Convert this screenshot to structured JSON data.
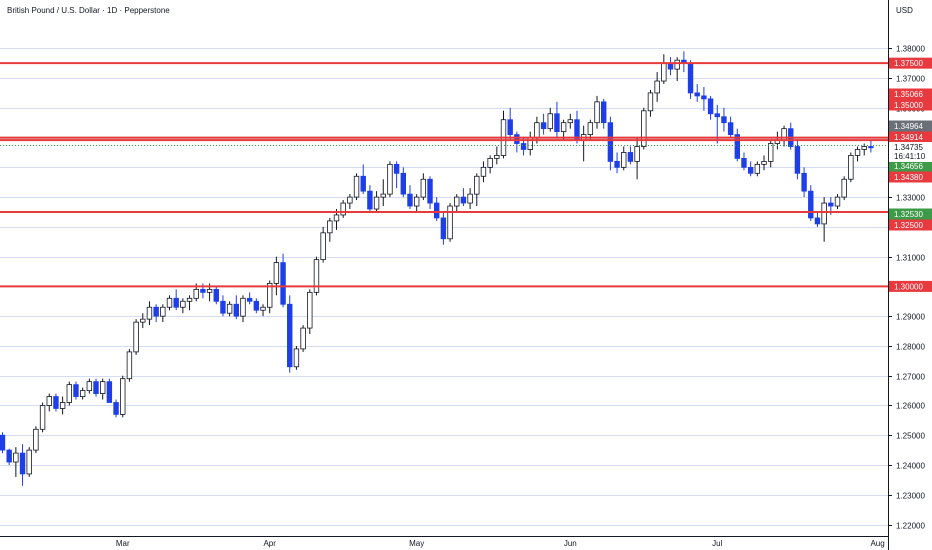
{
  "chart_data": {
    "type": "candlestick",
    "title": "British Pound / U.S. Dollar · 1D · Pepperstone",
    "currency": "USD",
    "colors": {
      "up_body": "#ffffff",
      "up_border": "#131722",
      "down_body": "#1e3ee8",
      "down_border": "#1e3ee8",
      "wick": "#131722",
      "grid": "#d6dcf0",
      "level_line": "#e83a3a",
      "tag_red": "#e8393f",
      "tag_green": "#3d9a48",
      "tag_gray": "#6b6f78",
      "axis_line": "#131722"
    },
    "y_axis": {
      "min": 1.2185,
      "max": 1.3895,
      "ticks": [
        "1.38000",
        "1.37000",
        "1.36000",
        "1.35000",
        "1.34000",
        "1.33000",
        "1.32000",
        "1.31000",
        "1.30000",
        "1.29000",
        "1.28000",
        "1.27000",
        "1.26000",
        "1.25000",
        "1.24000",
        "1.23000",
        "1.22000"
      ]
    },
    "x_axis": {
      "labels": [
        {
          "label": "Mar",
          "index": 18
        },
        {
          "label": "Apr",
          "index": 40
        },
        {
          "label": "May",
          "index": 62
        },
        {
          "label": "Jun",
          "index": 85
        },
        {
          "label": "Jul",
          "index": 107
        },
        {
          "label": "Aug",
          "index": 131
        }
      ]
    },
    "horizontal_levels": [
      1.375,
      1.35,
      1.325,
      1.3,
      1.34914
    ],
    "price_tags": [
      {
        "text": "1.37500",
        "value": 1.375,
        "style": "red"
      },
      {
        "text": "1.35066",
        "value": 1.35066,
        "style": "red"
      },
      {
        "text": "1.35000",
        "value": 1.35,
        "style": "red"
      },
      {
        "text": "1.34964",
        "value": 1.34964,
        "style": "gray"
      },
      {
        "text": "1.34914",
        "value": 1.34914,
        "style": "red"
      },
      {
        "text": "1.34656",
        "value": 1.34656,
        "style": "green"
      },
      {
        "text": "1.34380",
        "value": 1.3438,
        "style": "red"
      },
      {
        "text": "1.32530",
        "value": 1.3253,
        "style": "green"
      },
      {
        "text": "1.32500",
        "value": 1.325,
        "style": "red"
      },
      {
        "text": "1.30000",
        "value": 1.3,
        "style": "red"
      }
    ],
    "current_price": {
      "price": "1.34735",
      "countdown": "16:41:10",
      "value": 1.34735
    },
    "candles": [
      [
        1.25,
        1.251,
        1.244,
        1.245
      ],
      [
        1.245,
        1.2455,
        1.24,
        1.241
      ],
      [
        1.241,
        1.246,
        1.236,
        1.244
      ],
      [
        1.244,
        1.247,
        1.233,
        1.237
      ],
      [
        1.237,
        1.246,
        1.236,
        1.245
      ],
      [
        1.245,
        1.253,
        1.244,
        1.252
      ],
      [
        1.252,
        1.261,
        1.251,
        1.26
      ],
      [
        1.26,
        1.264,
        1.258,
        1.263
      ],
      [
        1.263,
        1.264,
        1.258,
        1.259
      ],
      [
        1.259,
        1.263,
        1.257,
        1.261
      ],
      [
        1.261,
        1.268,
        1.26,
        1.267
      ],
      [
        1.267,
        1.268,
        1.262,
        1.263
      ],
      [
        1.263,
        1.266,
        1.262,
        1.265
      ],
      [
        1.265,
        1.269,
        1.264,
        1.268
      ],
      [
        1.268,
        1.269,
        1.263,
        1.264
      ],
      [
        1.264,
        1.269,
        1.262,
        1.268
      ],
      [
        1.268,
        1.269,
        1.261,
        1.261
      ],
      [
        1.261,
        1.262,
        1.256,
        1.257
      ],
      [
        1.257,
        1.27,
        1.256,
        1.269
      ],
      [
        1.269,
        1.279,
        1.268,
        1.278
      ],
      [
        1.278,
        1.289,
        1.277,
        1.288
      ],
      [
        1.288,
        1.291,
        1.286,
        1.289
      ],
      [
        1.289,
        1.295,
        1.287,
        1.293
      ],
      [
        1.293,
        1.294,
        1.288,
        1.29
      ],
      [
        1.29,
        1.294,
        1.288,
        1.293
      ],
      [
        1.293,
        1.297,
        1.292,
        1.296
      ],
      [
        1.296,
        1.299,
        1.292,
        1.293
      ],
      [
        1.293,
        1.296,
        1.291,
        1.295
      ],
      [
        1.295,
        1.297,
        1.292,
        1.296
      ],
      [
        1.296,
        1.301,
        1.295,
        1.299
      ],
      [
        1.299,
        1.301,
        1.296,
        1.298
      ],
      [
        1.298,
        1.301,
        1.295,
        1.299
      ],
      [
        1.299,
        1.3,
        1.294,
        1.295
      ],
      [
        1.295,
        1.297,
        1.29,
        1.291
      ],
      [
        1.291,
        1.295,
        1.29,
        1.294
      ],
      [
        1.294,
        1.297,
        1.289,
        1.29
      ],
      [
        1.29,
        1.297,
        1.288,
        1.296
      ],
      [
        1.296,
        1.298,
        1.294,
        1.295
      ],
      [
        1.295,
        1.296,
        1.291,
        1.292
      ],
      [
        1.292,
        1.294,
        1.29,
        1.293
      ],
      [
        1.293,
        1.302,
        1.291,
        1.301
      ],
      [
        1.301,
        1.31,
        1.297,
        1.308
      ],
      [
        1.308,
        1.311,
        1.293,
        1.294
      ],
      [
        1.294,
        1.297,
        1.271,
        1.273
      ],
      [
        1.273,
        1.28,
        1.272,
        1.279
      ],
      [
        1.279,
        1.287,
        1.278,
        1.286
      ],
      [
        1.286,
        1.299,
        1.284,
        1.298
      ],
      [
        1.298,
        1.31,
        1.297,
        1.309
      ],
      [
        1.309,
        1.32,
        1.308,
        1.318
      ],
      [
        1.318,
        1.323,
        1.315,
        1.322
      ],
      [
        1.322,
        1.326,
        1.319,
        1.324
      ],
      [
        1.324,
        1.329,
        1.323,
        1.328
      ],
      [
        1.328,
        1.331,
        1.326,
        1.33
      ],
      [
        1.33,
        1.338,
        1.329,
        1.337
      ],
      [
        1.337,
        1.341,
        1.331,
        1.332
      ],
      [
        1.332,
        1.334,
        1.325,
        1.326
      ],
      [
        1.326,
        1.332,
        1.325,
        1.33
      ],
      [
        1.33,
        1.336,
        1.327,
        1.331
      ],
      [
        1.331,
        1.342,
        1.33,
        1.341
      ],
      [
        1.341,
        1.342,
        1.333,
        1.338
      ],
      [
        1.338,
        1.34,
        1.33,
        1.331
      ],
      [
        1.331,
        1.334,
        1.326,
        1.327
      ],
      [
        1.327,
        1.331,
        1.325,
        1.33
      ],
      [
        1.33,
        1.338,
        1.329,
        1.336
      ],
      [
        1.336,
        1.337,
        1.326,
        1.328
      ],
      [
        1.328,
        1.33,
        1.322,
        1.323
      ],
      [
        1.323,
        1.325,
        1.314,
        1.316
      ],
      [
        1.316,
        1.328,
        1.315,
        1.327
      ],
      [
        1.327,
        1.331,
        1.325,
        1.33
      ],
      [
        1.33,
        1.333,
        1.327,
        1.328
      ],
      [
        1.328,
        1.333,
        1.326,
        1.331
      ],
      [
        1.331,
        1.338,
        1.327,
        1.337
      ],
      [
        1.337,
        1.342,
        1.335,
        1.34
      ],
      [
        1.34,
        1.344,
        1.338,
        1.343
      ],
      [
        1.343,
        1.347,
        1.341,
        1.344
      ],
      [
        1.344,
        1.359,
        1.343,
        1.356
      ],
      [
        1.356,
        1.36,
        1.349,
        1.351
      ],
      [
        1.351,
        1.352,
        1.345,
        1.348
      ],
      [
        1.348,
        1.35,
        1.344,
        1.346
      ],
      [
        1.346,
        1.352,
        1.344,
        1.35
      ],
      [
        1.35,
        1.357,
        1.348,
        1.355
      ],
      [
        1.355,
        1.358,
        1.351,
        1.353
      ],
      [
        1.353,
        1.36,
        1.352,
        1.358
      ],
      [
        1.358,
        1.362,
        1.35,
        1.352
      ],
      [
        1.352,
        1.356,
        1.349,
        1.355
      ],
      [
        1.355,
        1.358,
        1.353,
        1.356
      ],
      [
        1.356,
        1.359,
        1.348,
        1.349
      ],
      [
        1.349,
        1.354,
        1.342,
        1.351
      ],
      [
        1.351,
        1.356,
        1.349,
        1.355
      ],
      [
        1.355,
        1.364,
        1.353,
        1.362
      ],
      [
        1.362,
        1.363,
        1.353,
        1.355
      ],
      [
        1.355,
        1.357,
        1.339,
        1.342
      ],
      [
        1.342,
        1.345,
        1.338,
        1.34
      ],
      [
        1.34,
        1.347,
        1.339,
        1.345
      ],
      [
        1.345,
        1.347,
        1.341,
        1.342
      ],
      [
        1.342,
        1.35,
        1.336,
        1.347
      ],
      [
        1.347,
        1.36,
        1.346,
        1.359
      ],
      [
        1.359,
        1.366,
        1.357,
        1.365
      ],
      [
        1.365,
        1.372,
        1.362,
        1.369
      ],
      [
        1.369,
        1.378,
        1.368,
        1.375
      ],
      [
        1.375,
        1.377,
        1.371,
        1.373
      ],
      [
        1.373,
        1.377,
        1.369,
        1.376
      ],
      [
        1.376,
        1.379,
        1.372,
        1.375
      ],
      [
        1.375,
        1.376,
        1.363,
        1.365
      ],
      [
        1.365,
        1.368,
        1.362,
        1.364
      ],
      [
        1.364,
        1.367,
        1.359,
        1.363
      ],
      [
        1.363,
        1.364,
        1.356,
        1.358
      ],
      [
        1.358,
        1.361,
        1.348,
        1.357
      ],
      [
        1.357,
        1.36,
        1.352,
        1.355
      ],
      [
        1.355,
        1.357,
        1.35,
        1.351
      ],
      [
        1.351,
        1.353,
        1.342,
        1.343
      ],
      [
        1.343,
        1.345,
        1.339,
        1.34
      ],
      [
        1.34,
        1.342,
        1.337,
        1.338
      ],
      [
        1.338,
        1.342,
        1.337,
        1.341
      ],
      [
        1.341,
        1.344,
        1.339,
        1.342
      ],
      [
        1.342,
        1.349,
        1.34,
        1.348
      ],
      [
        1.348,
        1.352,
        1.346,
        1.349
      ],
      [
        1.349,
        1.354,
        1.347,
        1.353
      ],
      [
        1.353,
        1.355,
        1.346,
        1.347
      ],
      [
        1.347,
        1.349,
        1.336,
        1.338
      ],
      [
        1.338,
        1.34,
        1.33,
        1.332
      ],
      [
        1.332,
        1.334,
        1.322,
        1.323
      ],
      [
        1.323,
        1.325,
        1.32,
        1.321
      ],
      [
        1.321,
        1.33,
        1.315,
        1.328
      ],
      [
        1.328,
        1.33,
        1.324,
        1.327
      ],
      [
        1.327,
        1.331,
        1.326,
        1.33
      ],
      [
        1.33,
        1.337,
        1.329,
        1.336
      ],
      [
        1.336,
        1.345,
        1.335,
        1.344
      ],
      [
        1.344,
        1.347,
        1.342,
        1.346
      ],
      [
        1.346,
        1.348,
        1.344,
        1.347
      ],
      [
        1.347,
        1.349,
        1.345,
        1.34656
      ]
    ]
  }
}
